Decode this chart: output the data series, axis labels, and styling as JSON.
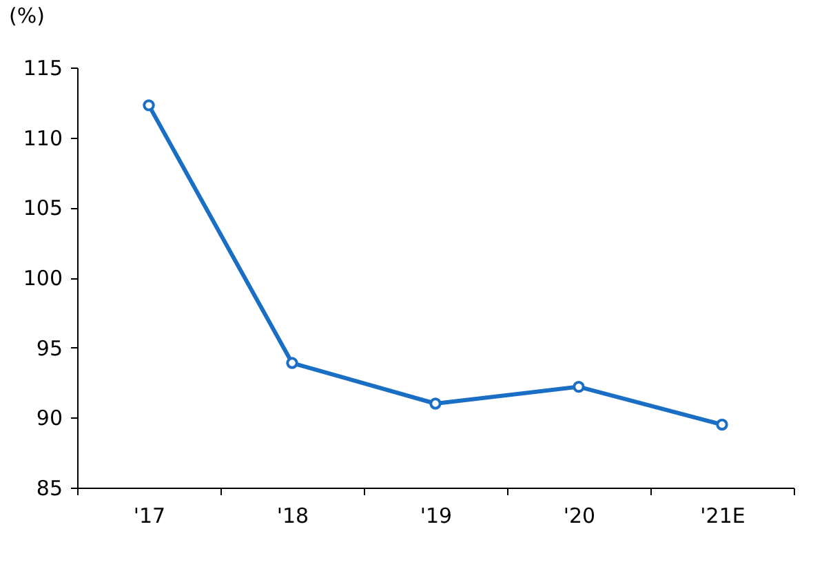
{
  "chart_data": {
    "type": "line",
    "ylabel": "(%)",
    "categories": [
      "'17",
      "'18",
      "'19",
      "'20",
      "'21E"
    ],
    "series": [
      {
        "color": "#1a6fc4",
        "values": [
          112.3,
          93.9,
          91.0,
          92.2,
          89.5
        ]
      }
    ],
    "ylim": [
      85,
      115
    ],
    "yticks": [
      85,
      90,
      95,
      100,
      105,
      110,
      115
    ],
    "grid": false,
    "marker": "circle",
    "line_style": "solid"
  }
}
